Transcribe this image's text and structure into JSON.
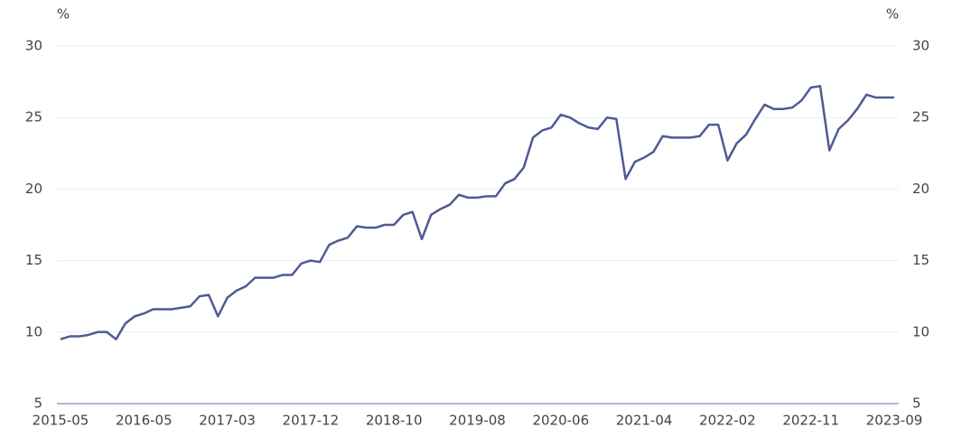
{
  "chart_data": {
    "type": "line",
    "ylabel": "%",
    "y2label": "%",
    "categories": [
      "2015-05",
      null,
      null,
      null,
      null,
      null,
      null,
      null,
      null,
      "2016-05",
      null,
      null,
      null,
      null,
      null,
      null,
      null,
      null,
      "2017-03",
      null,
      null,
      null,
      null,
      null,
      null,
      null,
      null,
      "2017-12",
      null,
      null,
      null,
      null,
      null,
      null,
      null,
      null,
      "2018-10",
      null,
      null,
      null,
      null,
      null,
      null,
      null,
      null,
      "2019-08",
      null,
      null,
      null,
      null,
      null,
      null,
      null,
      null,
      "2020-06",
      null,
      null,
      null,
      null,
      null,
      null,
      null,
      null,
      "2021-04",
      null,
      null,
      null,
      null,
      null,
      null,
      null,
      null,
      "2022-02",
      null,
      null,
      null,
      null,
      null,
      null,
      null,
      null,
      "2022-11",
      null,
      null,
      null,
      null,
      null,
      null,
      null,
      null,
      "2023-09"
    ],
    "series": [
      {
        "color": "#4f5a94",
        "values": [
          9.5,
          9.7,
          9.7,
          9.8,
          10.0,
          10.0,
          9.5,
          10.6,
          11.1,
          11.3,
          11.6,
          11.6,
          11.6,
          11.7,
          11.8,
          12.5,
          12.6,
          11.1,
          12.4,
          12.9,
          13.2,
          13.8,
          13.8,
          13.8,
          14.0,
          14.0,
          14.8,
          15.0,
          14.9,
          16.1,
          16.4,
          16.6,
          17.4,
          17.3,
          17.3,
          17.5,
          17.5,
          18.2,
          18.4,
          16.5,
          18.2,
          18.6,
          18.9,
          19.6,
          19.4,
          19.4,
          19.5,
          19.5,
          20.4,
          20.7,
          21.5,
          23.6,
          24.1,
          24.3,
          25.2,
          25.0,
          24.6,
          24.3,
          24.2,
          25.0,
          24.9,
          20.7,
          21.9,
          22.2,
          22.6,
          23.7,
          23.6,
          23.6,
          23.6,
          23.7,
          24.5,
          24.5,
          22.0,
          23.2,
          23.8,
          24.9,
          25.9,
          25.6,
          25.6,
          25.7,
          26.2,
          27.1,
          27.2,
          22.7,
          24.2,
          24.8,
          25.6,
          26.6,
          26.4,
          26.4,
          26.4
        ]
      }
    ],
    "ylim": [
      5,
      30
    ],
    "yticks": [
      5,
      10,
      15,
      20,
      25,
      30
    ],
    "y2lim": [
      5,
      30
    ],
    "y2ticks": [
      5,
      10,
      15,
      20,
      25,
      30
    ],
    "grid": true
  }
}
